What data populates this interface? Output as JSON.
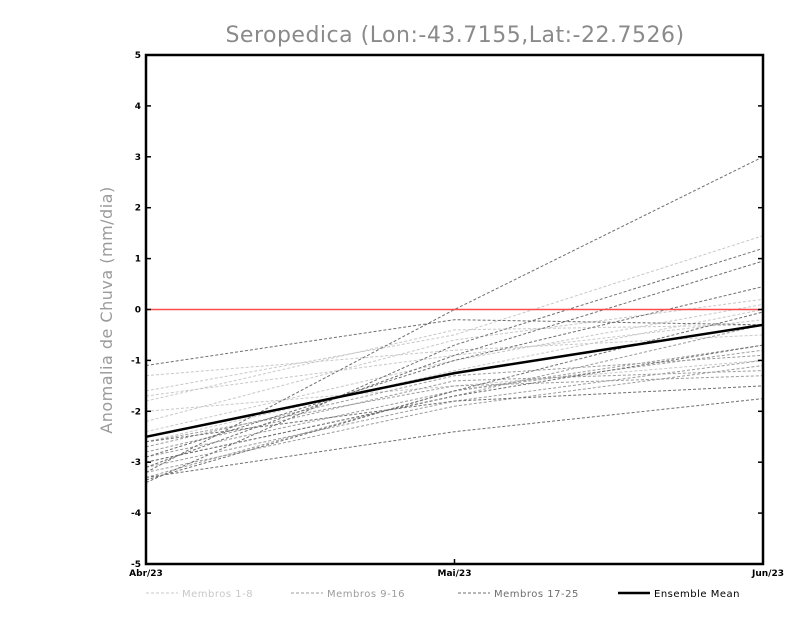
{
  "chart_data": {
    "type": "line",
    "title": "Seropedica (Lon:-43.7155,Lat:-22.7526)",
    "xlabel": "",
    "ylabel": "Anomalia de Chuva (mm/dia)",
    "categories": [
      "Abr/23",
      "Mai/23",
      "Jun/23"
    ],
    "ylim": [
      -5,
      5
    ],
    "yticks": [
      -5,
      -4,
      -3,
      -2,
      -1,
      0,
      1,
      2,
      3,
      4,
      5
    ],
    "reference_line": {
      "y": 0,
      "color": "#ff4d4d"
    },
    "groups": [
      {
        "name": "Membros 1-8",
        "color": "#c8c8c8",
        "dash": "dashed",
        "members": [
          [
            -1.6,
            -0.5,
            1.45
          ],
          [
            -2.2,
            -0.6,
            0.2
          ],
          [
            -1.8,
            -0.4,
            -0.3
          ],
          [
            -2.4,
            -1.0,
            0.1
          ],
          [
            -1.3,
            -0.8,
            -0.5
          ],
          [
            -2.0,
            -1.5,
            -1.0
          ],
          [
            -1.7,
            -0.9,
            -0.2
          ],
          [
            -2.6,
            -1.2,
            0.0
          ]
        ]
      },
      {
        "name": "Membros 9-16",
        "color": "#9c9c9c",
        "dash": "dashed",
        "members": [
          [
            -2.9,
            -1.6,
            -0.7
          ],
          [
            -3.1,
            -1.8,
            -1.0
          ],
          [
            -2.8,
            -1.4,
            -1.2
          ],
          [
            -3.2,
            -1.9,
            -1.1
          ],
          [
            -2.7,
            -1.3,
            -0.9
          ],
          [
            -3.0,
            -1.7,
            -0.3
          ],
          [
            -2.6,
            -1.5,
            -1.3
          ],
          [
            -3.3,
            -1.6,
            -0.8
          ]
        ]
      },
      {
        "name": "Membros 17-25",
        "color": "#6e6e6e",
        "dash": "dashed",
        "members": [
          [
            -3.2,
            0.0,
            3.0
          ],
          [
            -3.4,
            -0.7,
            1.2
          ],
          [
            -3.1,
            -0.9,
            0.95
          ],
          [
            -2.9,
            -1.0,
            0.45
          ],
          [
            -1.1,
            -0.2,
            -0.3
          ],
          [
            -3.3,
            -2.4,
            -1.75
          ],
          [
            -2.6,
            -1.8,
            -1.5
          ],
          [
            -3.0,
            -1.7,
            -0.7
          ],
          [
            -3.35,
            -1.6,
            -0.05
          ]
        ]
      }
    ],
    "series": [
      {
        "name": "Ensemble Mean",
        "color": "#000000",
        "values": [
          -2.5,
          -1.25,
          -0.3
        ]
      }
    ],
    "legend": {
      "placement": "bottom",
      "entries": [
        {
          "label": "Membros 1-8",
          "color": "#c8c8c8",
          "style": "dashed"
        },
        {
          "label": "Membros 9-16",
          "color": "#9c9c9c",
          "style": "dashed"
        },
        {
          "label": "Membros 17-25",
          "color": "#6e6e6e",
          "style": "dashed"
        },
        {
          "label": "Ensemble Mean",
          "color": "#000000",
          "style": "solid"
        }
      ]
    }
  }
}
